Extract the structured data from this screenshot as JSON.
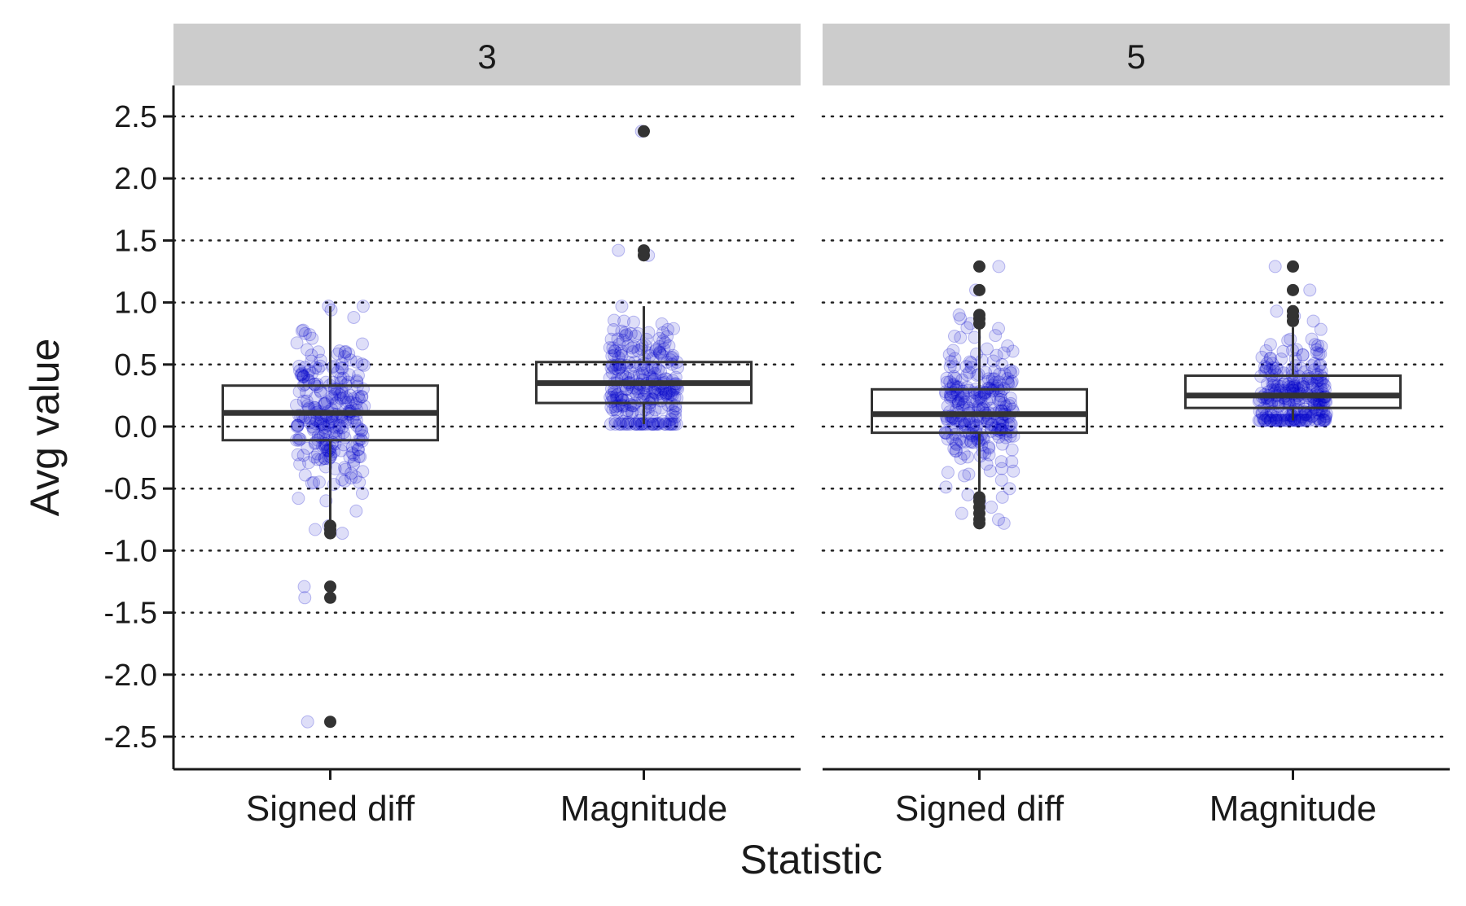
{
  "chart_data": {
    "type": "boxplot",
    "xlabel": "Statistic",
    "ylabel": "Avg value",
    "ylim": [
      -2.75,
      2.75
    ],
    "yticks": [
      -2.5,
      -2.0,
      -1.5,
      -1.0,
      -0.5,
      0.0,
      0.5,
      1.0,
      1.5,
      2.0,
      2.5
    ],
    "ytick_labels": [
      "-2.5",
      "-2.0",
      "-1.5",
      "-1.0",
      "-0.5",
      "0.0",
      "0.5",
      "1.0",
      "1.5",
      "2.0",
      "2.5"
    ],
    "grid": "horizontal dotted",
    "categories": [
      "Signed diff",
      "Magnitude"
    ],
    "panels": [
      {
        "label": "3",
        "boxes": [
          {
            "category": "Signed diff",
            "q1": -0.11,
            "median": 0.11,
            "q3": 0.33,
            "whisker_low": -0.76,
            "whisker_high": 0.97,
            "outliers": [
              -0.8,
              -0.83,
              -0.86,
              -1.29,
              -1.38,
              -2.38
            ]
          },
          {
            "category": "Magnitude",
            "q1": 0.19,
            "median": 0.35,
            "q3": 0.52,
            "whisker_low": 0.02,
            "whisker_high": 0.97,
            "outliers": [
              1.38,
              1.42,
              2.38
            ]
          }
        ]
      },
      {
        "label": "5",
        "boxes": [
          {
            "category": "Signed diff",
            "q1": -0.05,
            "median": 0.1,
            "q3": 0.3,
            "whisker_low": -0.55,
            "whisker_high": 0.8,
            "outliers": [
              0.83,
              0.87,
              0.9,
              1.1,
              1.29,
              -0.57,
              -0.6,
              -0.65,
              -0.7,
              -0.75,
              -0.78
            ]
          },
          {
            "category": "Magnitude",
            "q1": 0.15,
            "median": 0.25,
            "q3": 0.41,
            "whisker_low": 0.05,
            "whisker_high": 0.8,
            "outliers": [
              0.85,
              0.89,
              0.93,
              1.1,
              1.29
            ]
          }
        ]
      }
    ],
    "jitter_color": "#0000cc",
    "box_color": "#333333",
    "strip_color": "#cccccc"
  }
}
